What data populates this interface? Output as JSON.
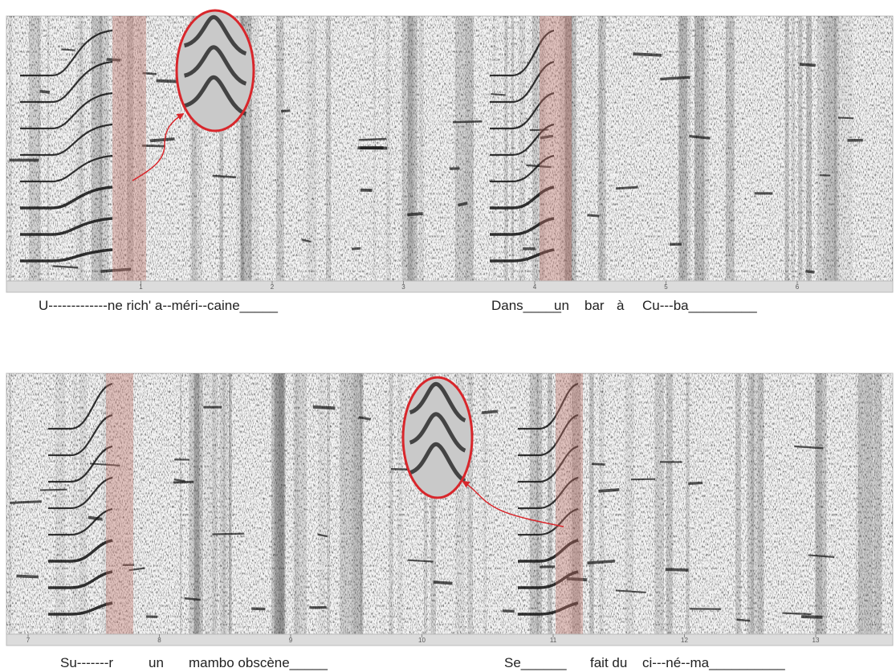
{
  "panels": [
    {
      "ruler_labels": [
        1,
        2,
        3,
        4,
        5,
        6
      ],
      "lyrics": [
        "U-------------ne rich' a--méri--caine_____",
        "Dans_____",
        "un",
        "bar",
        "à",
        "Cu---ba_________"
      ]
    },
    {
      "ruler_labels": [
        7,
        8,
        9,
        10,
        11,
        12,
        13
      ],
      "lyrics": [
        "Su-------r",
        "un",
        "mambo obscène_____",
        "Se______",
        "fait du",
        "ci---né--ma__________"
      ]
    }
  ]
}
